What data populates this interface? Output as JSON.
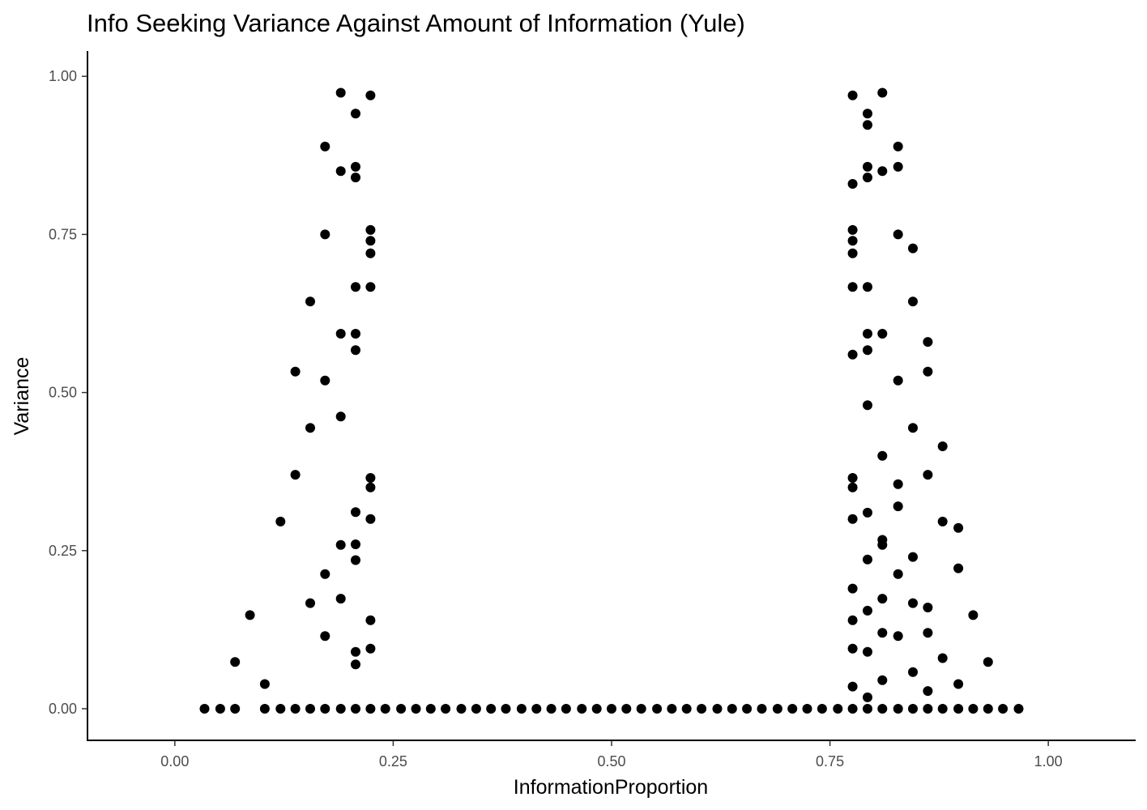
{
  "chart_data": {
    "type": "scatter",
    "title": "Info Seeking Variance Against Amount of Information (Yule)",
    "xlabel": "InformationProportion",
    "ylabel": "Variance",
    "xlim": [
      -0.1,
      1.1
    ],
    "ylim": [
      -0.05,
      1.04
    ],
    "x_ticks": [
      {
        "value": 0,
        "label": "0.00"
      },
      {
        "value": 0.25,
        "label": "0.25"
      },
      {
        "value": 0.5,
        "label": "0.50"
      },
      {
        "value": 0.75,
        "label": "0.75"
      },
      {
        "value": 1,
        "label": "1.00"
      }
    ],
    "y_ticks": [
      {
        "value": 0,
        "label": "0.00"
      },
      {
        "value": 0.25,
        "label": "0.25"
      },
      {
        "value": 0.5,
        "label": "0.50"
      },
      {
        "value": 0.75,
        "label": "0.75"
      },
      {
        "value": 1,
        "label": "1.00"
      }
    ],
    "grid": false,
    "point_color": "#000000",
    "series": [
      {
        "points": [
          [
            0.034,
            0
          ],
          [
            0.052,
            0
          ],
          [
            0.069,
            0
          ],
          [
            0.103,
            0
          ],
          [
            0.121,
            0
          ],
          [
            0.138,
            0
          ],
          [
            0.155,
            0
          ],
          [
            0.172,
            0
          ],
          [
            0.19,
            0
          ],
          [
            0.207,
            0
          ],
          [
            0.224,
            0
          ],
          [
            0.241,
            0
          ],
          [
            0.259,
            0
          ],
          [
            0.276,
            0
          ],
          [
            0.293,
            0
          ],
          [
            0.31,
            0
          ],
          [
            0.328,
            0
          ],
          [
            0.345,
            0
          ],
          [
            0.362,
            0
          ],
          [
            0.379,
            0
          ],
          [
            0.397,
            0
          ],
          [
            0.414,
            0
          ],
          [
            0.431,
            0
          ],
          [
            0.448,
            0
          ],
          [
            0.466,
            0
          ],
          [
            0.483,
            0
          ],
          [
            0.5,
            0
          ],
          [
            0.517,
            0
          ],
          [
            0.534,
            0
          ],
          [
            0.552,
            0
          ],
          [
            0.569,
            0
          ],
          [
            0.586,
            0
          ],
          [
            0.603,
            0
          ],
          [
            0.621,
            0
          ],
          [
            0.638,
            0
          ],
          [
            0.655,
            0
          ],
          [
            0.672,
            0
          ],
          [
            0.69,
            0
          ],
          [
            0.707,
            0
          ],
          [
            0.724,
            0
          ],
          [
            0.741,
            0
          ],
          [
            0.759,
            0
          ],
          [
            0.776,
            0
          ],
          [
            0.793,
            0
          ],
          [
            0.81,
            0
          ],
          [
            0.828,
            0
          ],
          [
            0.845,
            0
          ],
          [
            0.862,
            0
          ],
          [
            0.879,
            0
          ],
          [
            0.897,
            0
          ],
          [
            0.914,
            0
          ],
          [
            0.931,
            0
          ],
          [
            0.948,
            0
          ],
          [
            0.966,
            0
          ],
          [
            0.069,
            0.074
          ],
          [
            0.086,
            0.148
          ],
          [
            0.103,
            0.039
          ],
          [
            0.121,
            0.296
          ],
          [
            0.138,
            0.37
          ],
          [
            0.138,
            0.533
          ],
          [
            0.155,
            0.167
          ],
          [
            0.155,
            0.444
          ],
          [
            0.155,
            0.644
          ],
          [
            0.172,
            0.115
          ],
          [
            0.172,
            0.213
          ],
          [
            0.172,
            0.519
          ],
          [
            0.172,
            0.75
          ],
          [
            0.172,
            0.889
          ],
          [
            0.19,
            0.174
          ],
          [
            0.19,
            0.259
          ],
          [
            0.19,
            0.462
          ],
          [
            0.19,
            0.593
          ],
          [
            0.19,
            0.85
          ],
          [
            0.19,
            0.974
          ],
          [
            0.207,
            0.07
          ],
          [
            0.207,
            0.09
          ],
          [
            0.207,
            0.235
          ],
          [
            0.207,
            0.26
          ],
          [
            0.207,
            0.311
          ],
          [
            0.207,
            0.567
          ],
          [
            0.207,
            0.593
          ],
          [
            0.207,
            0.667
          ],
          [
            0.207,
            0.84
          ],
          [
            0.207,
            0.857
          ],
          [
            0.207,
            0.941
          ],
          [
            0.224,
            0.095
          ],
          [
            0.224,
            0.14
          ],
          [
            0.224,
            0.3
          ],
          [
            0.224,
            0.35
          ],
          [
            0.224,
            0.365
          ],
          [
            0.224,
            0.667
          ],
          [
            0.224,
            0.72
          ],
          [
            0.224,
            0.74
          ],
          [
            0.224,
            0.757
          ],
          [
            0.224,
            0.97
          ],
          [
            0.931,
            0.074
          ],
          [
            0.914,
            0.148
          ],
          [
            0.897,
            0.039
          ],
          [
            0.879,
            0.296
          ],
          [
            0.862,
            0.37
          ],
          [
            0.862,
            0.533
          ],
          [
            0.845,
            0.167
          ],
          [
            0.845,
            0.444
          ],
          [
            0.845,
            0.644
          ],
          [
            0.828,
            0.115
          ],
          [
            0.828,
            0.213
          ],
          [
            0.828,
            0.519
          ],
          [
            0.828,
            0.75
          ],
          [
            0.828,
            0.889
          ],
          [
            0.81,
            0.174
          ],
          [
            0.81,
            0.259
          ],
          [
            0.81,
            0.4
          ],
          [
            0.81,
            0.593
          ],
          [
            0.81,
            0.85
          ],
          [
            0.81,
            0.974
          ],
          [
            0.862,
            0.16
          ],
          [
            0.862,
            0.028
          ],
          [
            0.845,
            0.058
          ],
          [
            0.845,
            0.24
          ],
          [
            0.862,
            0.58
          ],
          [
            0.897,
            0.222
          ],
          [
            0.897,
            0.286
          ],
          [
            0.879,
            0.08
          ],
          [
            0.879,
            0.415
          ],
          [
            0.845,
            0.728
          ],
          [
            0.828,
            0.32
          ],
          [
            0.828,
            0.355
          ],
          [
            0.828,
            0.857
          ],
          [
            0.793,
            0.018
          ],
          [
            0.793,
            0.09
          ],
          [
            0.793,
            0.155
          ],
          [
            0.793,
            0.236
          ],
          [
            0.793,
            0.31
          ],
          [
            0.793,
            0.48
          ],
          [
            0.793,
            0.567
          ],
          [
            0.793,
            0.593
          ],
          [
            0.793,
            0.667
          ],
          [
            0.793,
            0.84
          ],
          [
            0.793,
            0.857
          ],
          [
            0.793,
            0.923
          ],
          [
            0.793,
            0.941
          ],
          [
            0.776,
            0.035
          ],
          [
            0.776,
            0.095
          ],
          [
            0.776,
            0.14
          ],
          [
            0.776,
            0.19
          ],
          [
            0.776,
            0.3
          ],
          [
            0.776,
            0.35
          ],
          [
            0.776,
            0.365
          ],
          [
            0.776,
            0.56
          ],
          [
            0.776,
            0.667
          ],
          [
            0.776,
            0.72
          ],
          [
            0.776,
            0.74
          ],
          [
            0.776,
            0.757
          ],
          [
            0.776,
            0.83
          ],
          [
            0.776,
            0.97
          ],
          [
            0.81,
            0.045
          ],
          [
            0.81,
            0.12
          ],
          [
            0.862,
            0.12
          ],
          [
            0.81,
            0.267
          ]
        ]
      }
    ]
  }
}
